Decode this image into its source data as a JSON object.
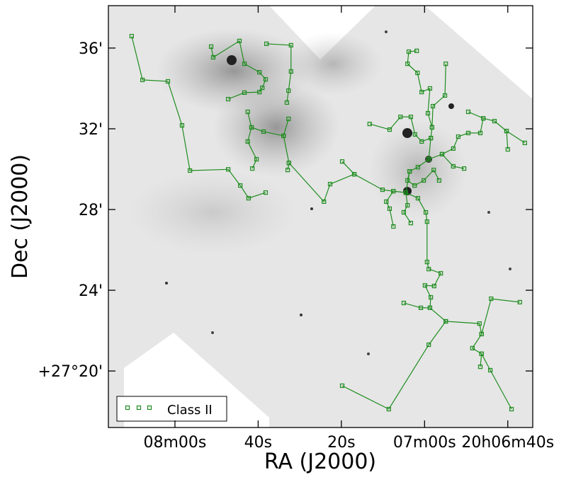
{
  "chart_data": {
    "type": "line",
    "xlabel": "RA (J2000)",
    "ylabel": "Dec (J2000)",
    "xlim": [
      136,
      34
    ],
    "ylim": [
      17.2,
      38.1
    ],
    "xticks": [
      {
        "value": 120,
        "label": "08m00s"
      },
      {
        "value": 100,
        "label": "40s"
      },
      {
        "value": 80,
        "label": "20s"
      },
      {
        "value": 60,
        "label": "07m00s"
      },
      {
        "value": 40,
        "label": "20h06m40s"
      }
    ],
    "yticks": [
      {
        "value": 36,
        "label": "36'"
      },
      {
        "value": 32,
        "label": "32'"
      },
      {
        "value": 28,
        "label": "28'"
      },
      {
        "value": 24,
        "label": "24'"
      },
      {
        "value": 20,
        "label": "+27°20'"
      }
    ],
    "legend": "lower left",
    "series": [
      {
        "name": "Class II",
        "color": "#1e8c1e",
        "marker": "square",
        "x": [
          130.4,
          127.8,
          121.7,
          118.3,
          116.4,
          107.2,
          104.3,
          102.3,
          98.2,
          null,
          111.3,
          110.8,
          104.5,
          103.3,
          99.7,
          98.2,
          99.0,
          99.7,
          103.3,
          107.2,
          null,
          98.0,
          92.1,
          92.1,
          92.7,
          93.1,
          null,
          102.5,
          101.6,
          98.7,
          93.9,
          92.7,
          null,
          93.9,
          92.6,
          92.9,
          null,
          101.6,
          102.5,
          100.4,
          101.4,
          null,
          92.6,
          84.2,
          82.7,
          76.9,
          70.1,
          67.5,
          64.5,
          null,
          76.9,
          79.8,
          null,
          64.5,
          63.6,
          61.6,
          59.0,
          58.5,
          58.2,
          59.2,
          58.7,
          60.7,
          61.7,
          64.1,
          63.8,
          61.9,
          null,
          58.2,
          58.0,
          55.1,
          54.9,
          null,
          59.0,
          55.8,
          53.1,
          51.9,
          49.5,
          46.6,
          45.9,
          43.2,
          40.3,
          40.0,
          null,
          40.3,
          35.9,
          null,
          45.9,
          49.5,
          null,
          55.8,
          53.1,
          50.5,
          null,
          64.5,
          61.6,
          59.7,
          59.4,
          59.4,
          59.0,
          56.1,
          57.7,
          59.9,
          58.5,
          58.7,
          60.9,
          65.0,
          null,
          58.7,
          54.9,
          59.0,
          68.6,
          79.8,
          null,
          54.9,
          46.8,
          46.3,
          48.5,
          46.3,
          44.2,
          39.1,
          null,
          46.3,
          46.6,
          null,
          46.3,
          44.0,
          37.1,
          null,
          67.5,
          69.2,
          68.4,
          67.5,
          null,
          64.5,
          64.1,
          65.0,
          63.3,
          null,
          73.2,
          68.4,
          65.8,
          63.3,
          62.3,
          60.7,
          58.5,
          null,
          63.6,
          64.1,
          62.4,
          60.2,
          57.8,
          56.5
        ],
        "y": [
          36.59,
          34.42,
          34.35,
          32.17,
          29.93,
          29.99,
          29.19,
          28.56,
          28.84,
          null,
          36.07,
          35.54,
          36.35,
          35.22,
          34.8,
          34.45,
          34.03,
          33.82,
          33.79,
          33.47,
          null,
          36.21,
          36.14,
          34.84,
          33.89,
          33.3,
          null,
          32.84,
          32.07,
          31.86,
          31.65,
          32.49,
          null,
          31.65,
          30.31,
          29.96,
          null,
          32.07,
          31.37,
          30.49,
          30.03,
          null,
          30.31,
          28.39,
          29.26,
          29.75,
          28.98,
          28.91,
          28.84,
          null,
          29.75,
          30.38,
          null,
          28.84,
          29.89,
          30.1,
          30.49,
          31.54,
          32.07,
          32.77,
          34.0,
          33.82,
          34.77,
          35.22,
          35.82,
          35.86,
          null,
          32.07,
          33.12,
          33.65,
          35.22,
          null,
          30.49,
          30.74,
          31.02,
          31.61,
          31.79,
          31.79,
          32.52,
          32.38,
          31.89,
          30.98,
          null,
          31.89,
          31.3,
          null,
          32.52,
          32.84,
          null,
          30.74,
          30.14,
          30.03,
          null,
          28.84,
          28.56,
          27.86,
          27.4,
          25.4,
          25.05,
          24.84,
          24.21,
          24.24,
          23.65,
          23.13,
          23.13,
          23.37,
          null,
          23.13,
          22.46,
          21.3,
          18.11,
          19.27,
          null,
          22.46,
          22.35,
          21.83,
          21.13,
          20.85,
          20.04,
          18.11,
          null,
          20.85,
          20.21,
          null,
          21.83,
          23.58,
          23.41,
          null,
          28.91,
          28.39,
          28.04,
          27.16,
          null,
          28.84,
          28.21,
          27.86,
          27.33,
          null,
          32.24,
          31.96,
          32.59,
          32.59,
          31.72,
          31.37,
          31.54,
          null,
          29.89,
          29.44,
          29.19,
          29.44,
          29.96,
          29.44
        ]
      }
    ]
  }
}
